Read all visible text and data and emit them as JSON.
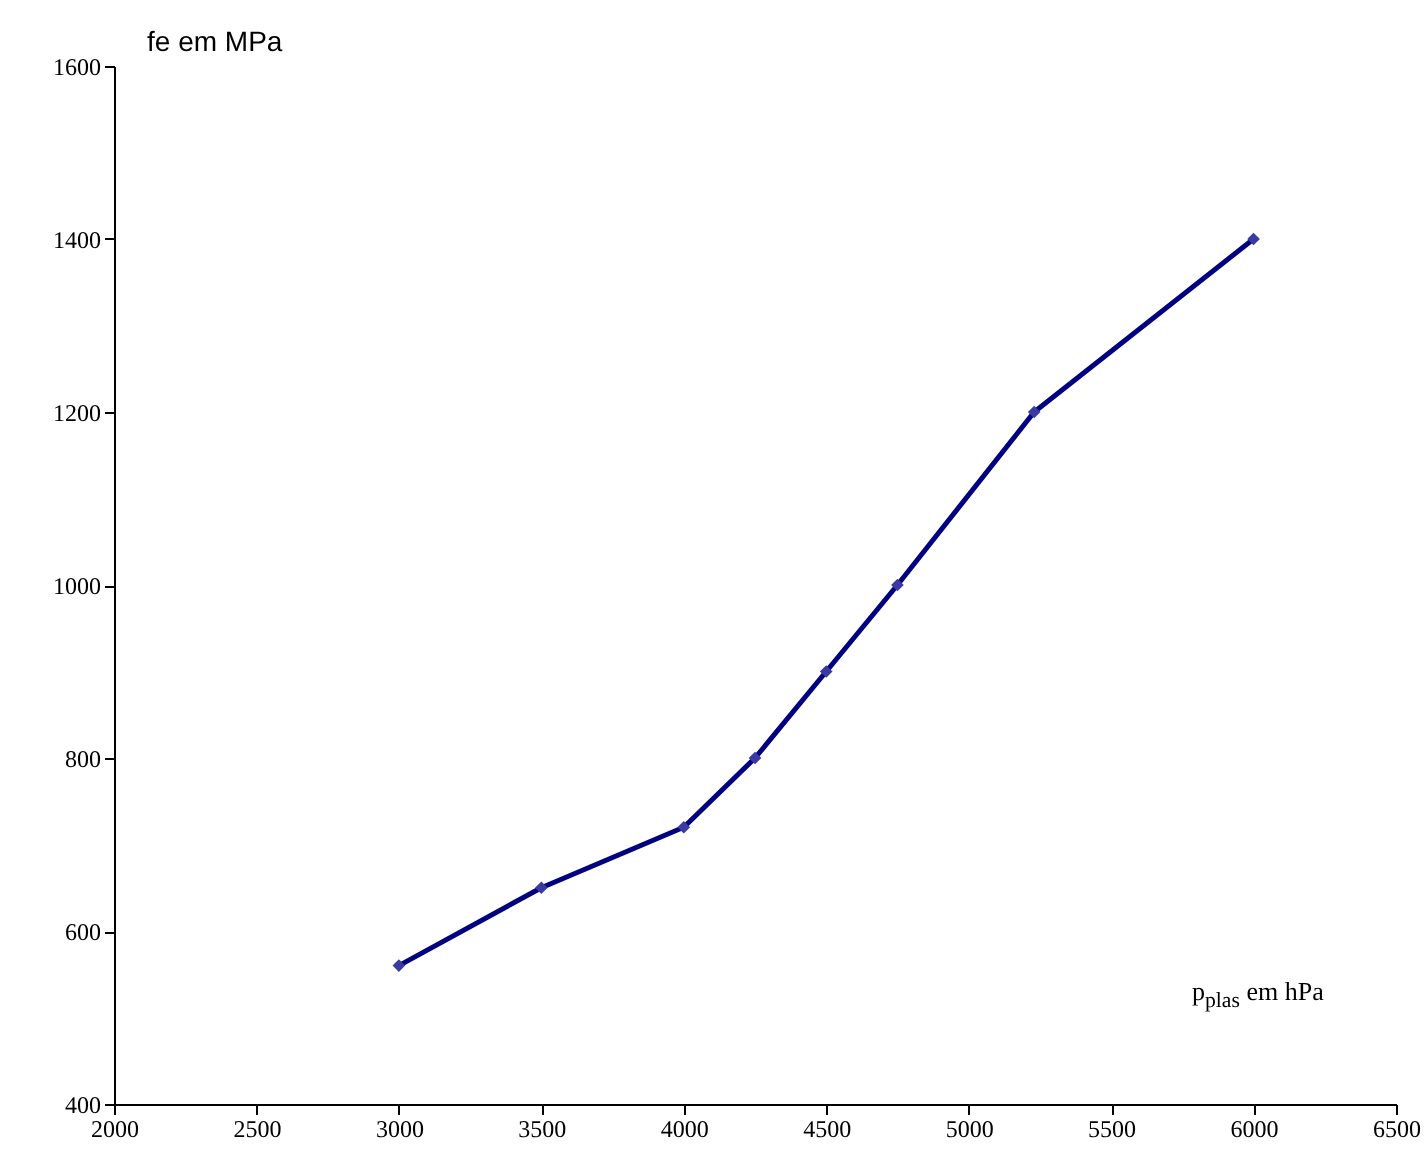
{
  "chart_data": {
    "type": "line",
    "xlabel": "p$_{plas}$ em hPa",
    "ylabel": "fe em MPa",
    "x": [
      3000,
      3500,
      4000,
      4250,
      4500,
      4750,
      5230,
      6000
    ],
    "series": [
      {
        "color": "#000080",
        "values": [
          560,
          650,
          720,
          800,
          900,
          1000,
          1200,
          1400
        ]
      }
    ],
    "xlim": [
      2000,
      6500
    ],
    "xticks": [
      2000,
      2500,
      3000,
      3500,
      4000,
      4500,
      5000,
      5500,
      6000,
      6500
    ],
    "ylim": [
      400,
      1600
    ],
    "yticks": [
      400,
      600,
      800,
      1000,
      1200,
      1400,
      1600
    ],
    "grid": false,
    "marker": "diamond",
    "line_style": "solid"
  }
}
